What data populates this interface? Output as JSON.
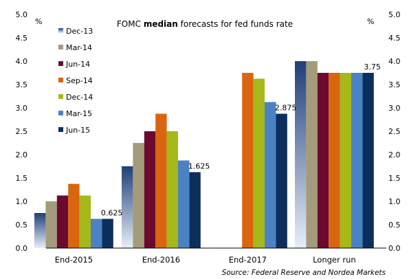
{
  "chart_data": {
    "type": "bar",
    "title_pre": "FOMC ",
    "title_bold": "median",
    "title_post": " forecasts  for fed funds rate",
    "source": "Source: Federal Reserve and Nordea Markets",
    "unit_left": "%",
    "unit_right": "%",
    "ylim": [
      0,
      5
    ],
    "yticks": [
      "0.0",
      "0.5",
      "1.0",
      "1.5",
      "2.0",
      "2.5",
      "3.0",
      "3.5",
      "4.0",
      "4.5",
      "5.0"
    ],
    "grid": false,
    "legend_position": "top-left",
    "categories": [
      "End-2015",
      "End-2016",
      "End-2017",
      "Longer run"
    ],
    "series": [
      {
        "name": "Dec-13",
        "color": "#1f3f78",
        "values": [
          0.75,
          1.75,
          null,
          4.0
        ]
      },
      {
        "name": "Mar-14",
        "color": "#a39b7b",
        "values": [
          1.0,
          2.25,
          null,
          4.0
        ]
      },
      {
        "name": "Jun-14",
        "color": "#6b0a2e",
        "values": [
          1.125,
          2.5,
          null,
          3.75
        ]
      },
      {
        "name": "Sep-14",
        "color": "#d9650f",
        "values": [
          1.375,
          2.875,
          3.75,
          3.75
        ]
      },
      {
        "name": "Dec-14",
        "color": "#a6b81a",
        "values": [
          1.125,
          2.5,
          3.625,
          3.75
        ]
      },
      {
        "name": "Mar-15",
        "color": "#4a82c4",
        "values": [
          0.625,
          1.875,
          3.125,
          3.75
        ]
      },
      {
        "name": "Jun-15",
        "color": "#0d2f5e",
        "values": [
          0.625,
          1.625,
          2.875,
          3.75
        ]
      }
    ],
    "data_labels": [
      {
        "category": "End-2015",
        "series": "Jun-15",
        "text": "0.625"
      },
      {
        "category": "End-2016",
        "series": "Jun-15",
        "text": "1.625"
      },
      {
        "category": "End-2017",
        "series": "Jun-15",
        "text": "2.875"
      },
      {
        "category": "Longer run",
        "series": "Jun-15",
        "text": "3.75"
      }
    ]
  }
}
